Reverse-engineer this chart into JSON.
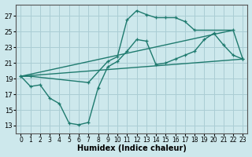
{
  "xlabel": "Humidex (Indice chaleur)",
  "bg_color": "#cde8ec",
  "grid_color": "#aacdd4",
  "line_color": "#1e7a6e",
  "xlim": [
    -0.5,
    23.5
  ],
  "ylim": [
    12,
    28.5
  ],
  "xticks": [
    0,
    1,
    2,
    3,
    4,
    5,
    6,
    7,
    8,
    9,
    10,
    11,
    12,
    13,
    14,
    15,
    16,
    17,
    18,
    19,
    20,
    21,
    22,
    23
  ],
  "yticks": [
    13,
    15,
    17,
    19,
    21,
    23,
    25,
    27
  ],
  "curve1_x": [
    0,
    1,
    2,
    3,
    4,
    5,
    6,
    7,
    8,
    9,
    10,
    11,
    12,
    13,
    14,
    15,
    16,
    17,
    18,
    19,
    20,
    21,
    22,
    23
  ],
  "curve1_y": [
    19.3,
    18.0,
    18.2,
    16.5,
    15.8,
    13.3,
    13.1,
    13.4,
    17.8,
    20.5,
    21.2,
    22.5,
    24.0,
    23.8,
    20.8,
    21.0,
    21.5,
    22.0,
    22.5,
    24.0,
    24.8,
    23.3,
    22.0,
    21.5
  ],
  "curve2_x": [
    0,
    1,
    7,
    9,
    10,
    11,
    12,
    13,
    14,
    15,
    16,
    17,
    18,
    22,
    23
  ],
  "curve2_y": [
    19.3,
    19.3,
    18.5,
    21.2,
    21.8,
    26.5,
    27.7,
    27.2,
    26.8,
    26.8,
    26.8,
    26.3,
    25.2,
    25.2,
    21.5
  ],
  "line1_x": [
    0,
    22
  ],
  "line1_y": [
    19.3,
    25.2
  ],
  "line2_x": [
    0,
    23
  ],
  "line2_y": [
    19.3,
    21.5
  ]
}
